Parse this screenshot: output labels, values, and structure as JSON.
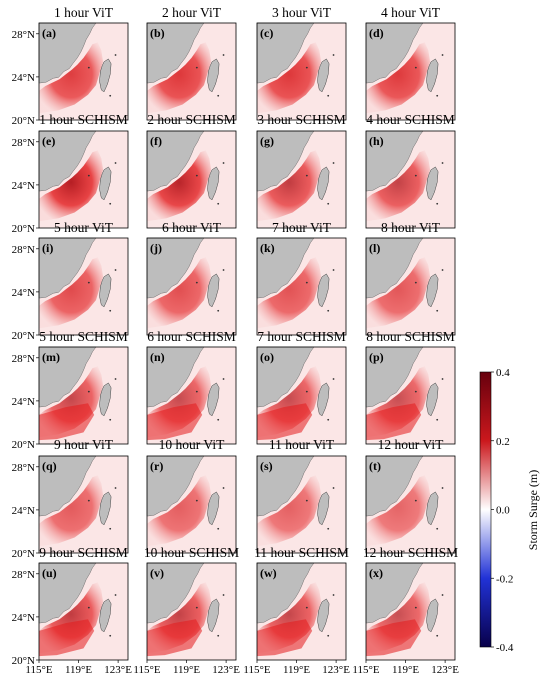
{
  "figure": {
    "panels": [
      {
        "title": "1 hour ViT",
        "label": "(a)",
        "model": "ViT",
        "hour": 1,
        "strength": 0.86
      },
      {
        "title": "2 hour ViT",
        "label": "(b)",
        "model": "ViT",
        "hour": 2,
        "strength": 0.9
      },
      {
        "title": "3 hour ViT",
        "label": "(c)",
        "model": "ViT",
        "hour": 3,
        "strength": 0.9
      },
      {
        "title": "4 hour ViT",
        "label": "(d)",
        "model": "ViT",
        "hour": 4,
        "strength": 0.88
      },
      {
        "title": "1 hour SCHISM",
        "label": "(e)",
        "model": "SCHISM",
        "hour": 1,
        "strength": 1.0
      },
      {
        "title": "2 hour SCHISM",
        "label": "(f)",
        "model": "SCHISM",
        "hour": 2,
        "strength": 0.97
      },
      {
        "title": "3 hour SCHISM",
        "label": "(g)",
        "model": "SCHISM",
        "hour": 3,
        "strength": 0.85
      },
      {
        "title": "4 hour SCHISM",
        "label": "(h)",
        "model": "SCHISM",
        "hour": 4,
        "strength": 0.82
      },
      {
        "title": "5 hour ViT",
        "label": "(i)",
        "model": "ViT",
        "hour": 5,
        "strength": 0.8
      },
      {
        "title": "6 hour ViT",
        "label": "(j)",
        "model": "ViT",
        "hour": 6,
        "strength": 0.78
      },
      {
        "title": "7 hour ViT",
        "label": "(k)",
        "model": "ViT",
        "hour": 7,
        "strength": 0.76
      },
      {
        "title": "8 hour ViT",
        "label": "(l)",
        "model": "ViT",
        "hour": 8,
        "strength": 0.74
      },
      {
        "title": "5 hour SCHISM",
        "label": "(m)",
        "model": "SCHISM",
        "hour": 5,
        "strength": 0.8
      },
      {
        "title": "6 hour SCHISM",
        "label": "(n)",
        "model": "SCHISM",
        "hour": 6,
        "strength": 0.78
      },
      {
        "title": "7 hour SCHISM",
        "label": "(o)",
        "model": "SCHISM",
        "hour": 7,
        "strength": 0.78
      },
      {
        "title": "8 hour SCHISM",
        "label": "(p)",
        "model": "SCHISM",
        "hour": 8,
        "strength": 0.76
      },
      {
        "title": "9 hour ViT",
        "label": "(q)",
        "model": "ViT",
        "hour": 9,
        "strength": 0.72
      },
      {
        "title": "10 hour ViT",
        "label": "(r)",
        "model": "ViT",
        "hour": 10,
        "strength": 0.7
      },
      {
        "title": "11 hour ViT",
        "label": "(s)",
        "model": "ViT",
        "hour": 11,
        "strength": 0.68
      },
      {
        "title": "12 hour ViT",
        "label": "(t)",
        "model": "ViT",
        "hour": 12,
        "strength": 0.66
      },
      {
        "title": "9 hour SCHISM",
        "label": "(u)",
        "model": "SCHISM",
        "hour": 9,
        "strength": 0.85
      },
      {
        "title": "10 hour SCHISM",
        "label": "(v)",
        "model": "SCHISM",
        "hour": 10,
        "strength": 0.82
      },
      {
        "title": "11 hour SCHISM",
        "label": "(w)",
        "model": "SCHISM",
        "hour": 11,
        "strength": 0.8
      },
      {
        "title": "12 hour SCHISM",
        "label": "(x)",
        "model": "SCHISM",
        "hour": 12,
        "strength": 0.76
      }
    ],
    "y_ticks": [
      "28°N",
      "24°N",
      "20°N"
    ],
    "x_ticks": [
      "115°E",
      "119°E",
      "123°E"
    ],
    "colorbar": {
      "label": "Storm Surge (m)",
      "ticks": [
        "0.4",
        "0.2",
        "0.0",
        "-0.2",
        "-0.4"
      ],
      "colors": [
        "#67000d",
        "#cb181d",
        "#ffffff",
        "#2132d6",
        "#08004a"
      ]
    },
    "colors": {
      "land": "#bdbdbd",
      "sea_surge": "#e31a1c",
      "sea_calm": "#fbe6e6"
    }
  },
  "chart_data": {
    "type": "heatmap",
    "variable": "Storm Surge (m)",
    "lon_range": [
      115,
      124
    ],
    "lat_range": [
      20,
      29
    ],
    "lon_ticks": [
      115,
      119,
      123
    ],
    "lat_ticks": [
      20,
      24,
      28
    ],
    "colorbar_range": [
      -0.4,
      0.4
    ],
    "colorbar_ticks": [
      -0.4,
      -0.2,
      0.0,
      0.2,
      0.4
    ],
    "colormap": "seismic (blue-white-red)",
    "layout": "6 rows x 4 columns, alternating ViT and SCHISM rows",
    "peak_surge_estimate_m": {
      "1 hour SCHISM": 0.35,
      "2 hour SCHISM": 0.33,
      "1 hour ViT": 0.28
    }
  }
}
